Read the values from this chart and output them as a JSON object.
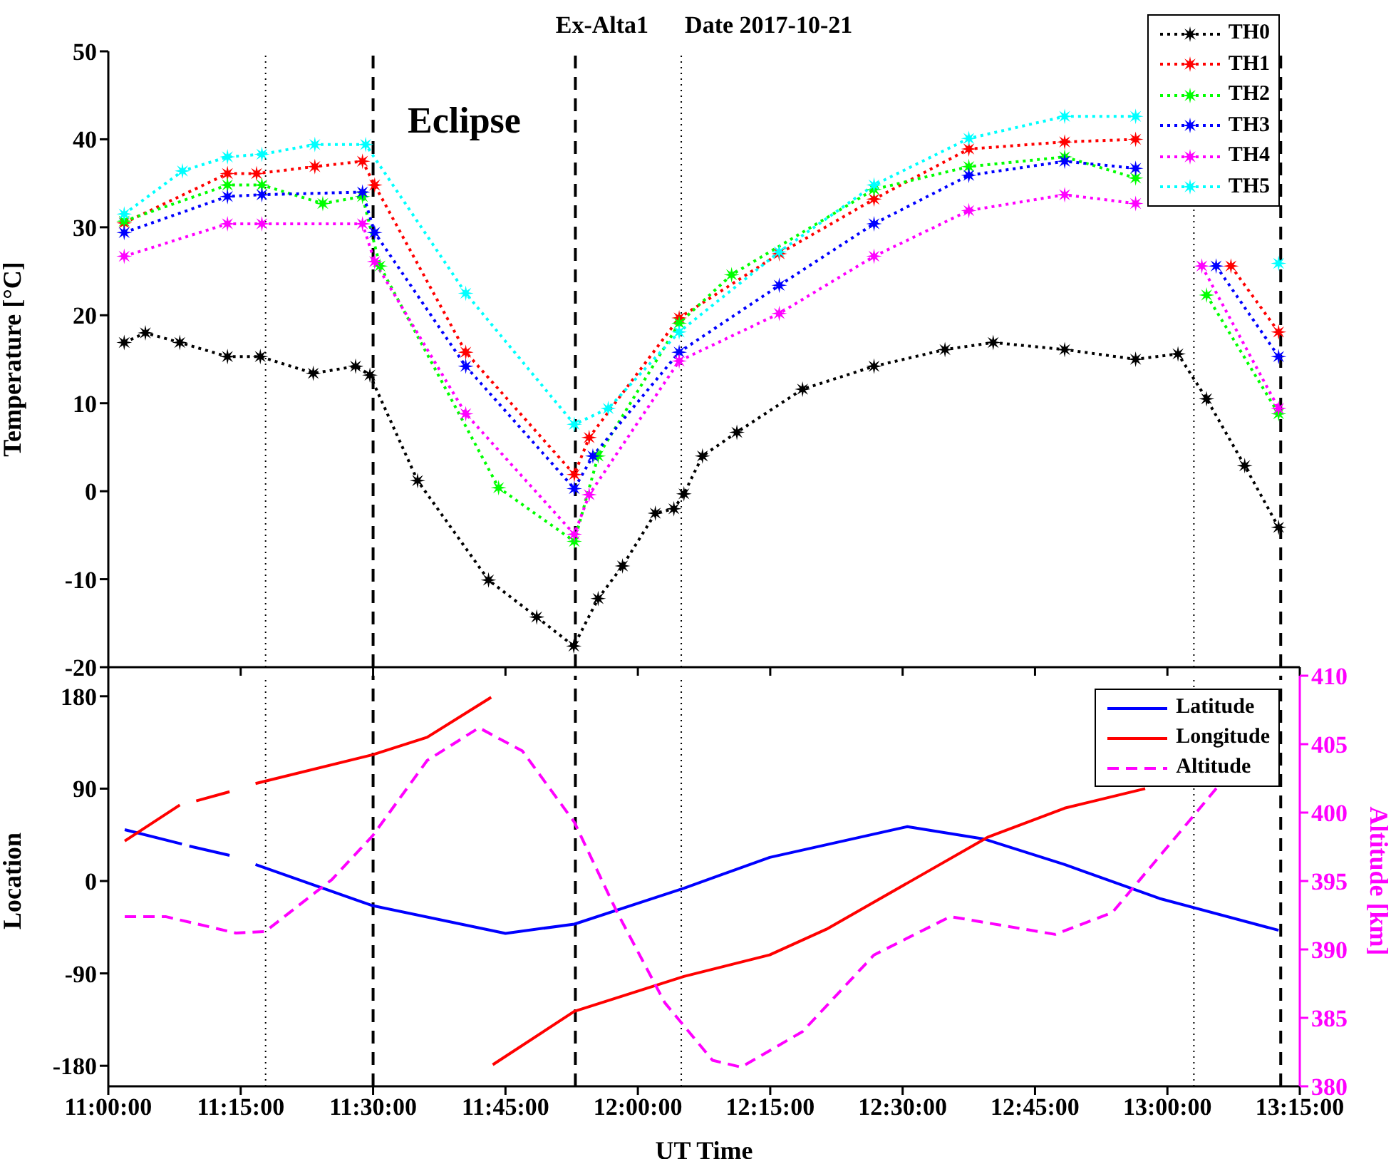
{
  "chart_data": [
    {
      "type": "line",
      "title": "Ex-Alta1      Date 2017-10-21",
      "ylabel": "Temperature [°C]",
      "xlim": [
        11,
        13.25
      ],
      "xticks": [
        11,
        11.25,
        11.5,
        11.75,
        12,
        12.25,
        12.5,
        12.75,
        13,
        13.25
      ],
      "ylim": [
        -20,
        50
      ],
      "yticks": [
        -20,
        -10,
        0,
        10,
        20,
        30,
        40,
        50
      ],
      "tick_labels": "y",
      "legend": "top right",
      "marker": "star",
      "line_style": "dotted",
      "annotations": [
        "Eclipse"
      ],
      "ref_lines": [
        {
          "axis": "x",
          "value": 11.297,
          "line_style": "dotted",
          "color": "#000000"
        },
        {
          "axis": "x",
          "value": 11.5,
          "line_style": "dashed",
          "color": "#000000"
        },
        {
          "axis": "x",
          "value": 11.882,
          "line_style": "dashed",
          "color": "#000000"
        },
        {
          "axis": "x",
          "value": 12.082,
          "line_style": "dotted",
          "color": "#000000"
        },
        {
          "axis": "x",
          "value": 13.05,
          "line_style": "dotted",
          "color": "#000000"
        },
        {
          "axis": "x",
          "value": 13.214,
          "line_style": "dashed",
          "color": "#000000"
        }
      ],
      "series": [
        {
          "name": "TH0",
          "color": "#000000",
          "x": [
            11.03,
            11.07,
            11.135,
            11.225,
            11.287,
            11.387,
            11.467,
            11.494,
            11.584,
            11.718,
            11.809,
            11.879,
            11.925,
            11.971,
            12.033,
            12.068,
            12.087,
            12.122,
            12.187,
            12.311,
            12.446,
            12.58,
            12.671,
            12.806,
            12.94,
            13.02,
            13.074,
            13.146,
            13.21
          ],
          "values": [
            16.9,
            18.0,
            16.9,
            15.3,
            15.3,
            13.4,
            14.2,
            13.2,
            1.2,
            -10.1,
            -14.3,
            -17.6,
            -12.2,
            -8.5,
            -2.5,
            -2.0,
            -0.3,
            4.0,
            6.7,
            11.6,
            14.2,
            16.1,
            16.9,
            16.1,
            15.0,
            15.6,
            10.5,
            2.9,
            -4.1
          ]
        },
        {
          "name": "TH1",
          "color": "#ff0000",
          "x": [
            11.03,
            11.225,
            11.28,
            11.39,
            11.48,
            11.503,
            11.675,
            11.88,
            11.908,
            12.078,
            12.267,
            12.446,
            12.625,
            12.806,
            12.94,
            13.0,
            13.12,
            13.21
          ],
          "values": [
            30.5,
            36.1,
            36.1,
            36.9,
            37.5,
            34.8,
            15.8,
            1.9,
            6.1,
            19.7,
            27.0,
            33.2,
            38.9,
            39.7,
            40.0,
            null,
            25.6,
            18.1
          ]
        },
        {
          "name": "TH2",
          "color": "#00ff00",
          "x": [
            11.03,
            11.225,
            11.29,
            11.405,
            11.48,
            11.513,
            11.737,
            11.88,
            11.925,
            12.078,
            12.177,
            12.446,
            12.625,
            12.806,
            12.94,
            13.0,
            13.074,
            13.21
          ],
          "values": [
            30.7,
            34.8,
            34.8,
            32.7,
            33.5,
            25.6,
            0.4,
            -5.7,
            4.0,
            19.1,
            24.6,
            34.3,
            36.9,
            38.0,
            35.6,
            null,
            22.3,
            8.8
          ]
        },
        {
          "name": "TH3",
          "color": "#0000ff",
          "x": [
            11.03,
            11.225,
            11.29,
            11.48,
            11.503,
            11.675,
            11.88,
            11.915,
            12.078,
            12.267,
            12.446,
            12.625,
            12.806,
            12.94,
            13.0,
            13.092,
            13.21
          ],
          "values": [
            29.4,
            33.5,
            33.7,
            34.0,
            29.4,
            14.2,
            0.3,
            4.0,
            15.8,
            23.4,
            30.4,
            35.9,
            37.5,
            36.7,
            null,
            25.6,
            15.3
          ]
        },
        {
          "name": "TH4",
          "color": "#ff00ff",
          "x": [
            11.03,
            11.225,
            11.29,
            11.48,
            11.503,
            11.675,
            11.88,
            11.908,
            12.078,
            12.267,
            12.446,
            12.625,
            12.806,
            12.94,
            13.0,
            13.065,
            13.21
          ],
          "values": [
            26.7,
            30.4,
            30.4,
            30.4,
            26.1,
            8.8,
            -4.9,
            -0.4,
            14.8,
            20.2,
            26.7,
            31.9,
            33.7,
            32.7,
            null,
            25.6,
            9.4
          ]
        },
        {
          "name": "TH5",
          "color": "#00ffff",
          "x": [
            11.03,
            11.14,
            11.225,
            11.29,
            11.39,
            11.486,
            11.675,
            11.88,
            11.944,
            12.078,
            12.267,
            12.446,
            12.625,
            12.806,
            12.94,
            13.0,
            13.21
          ],
          "values": [
            31.5,
            36.4,
            38.0,
            38.3,
            39.4,
            39.4,
            22.5,
            7.6,
            9.4,
            18.1,
            27.2,
            34.8,
            40.1,
            42.6,
            42.6,
            null,
            25.9
          ]
        }
      ]
    },
    {
      "type": "line",
      "xlabel": "UT Time",
      "ylabel": "Location",
      "y2label": "Altitude [km]",
      "xlim": [
        11,
        13.25
      ],
      "xticks": [
        {
          "value": 11,
          "label": "11:00:00"
        },
        {
          "value": 11.25,
          "label": "11:15:00"
        },
        {
          "value": 11.5,
          "label": "11:30:00"
        },
        {
          "value": 11.75,
          "label": "11:45:00"
        },
        {
          "value": 12,
          "label": "12:00:00"
        },
        {
          "value": 12.25,
          "label": "12:15:00"
        },
        {
          "value": 12.5,
          "label": "12:30:00"
        },
        {
          "value": 12.75,
          "label": "12:45:00"
        },
        {
          "value": 13,
          "label": "13:00:00"
        },
        {
          "value": 13.25,
          "label": "13:15:00"
        }
      ],
      "ylim": [
        -200,
        200
      ],
      "yticks": [
        -180,
        -90,
        0,
        90,
        180
      ],
      "y2lim": [
        380,
        410
      ],
      "y2ticks": [
        380,
        385,
        390,
        395,
        400,
        405,
        410
      ],
      "legend": "top right",
      "ref_lines": [
        {
          "axis": "x",
          "value": 11.297,
          "line_style": "dotted",
          "color": "#000000"
        },
        {
          "axis": "x",
          "value": 11.5,
          "line_style": "dashed",
          "color": "#000000"
        },
        {
          "axis": "x",
          "value": 11.882,
          "line_style": "dashed",
          "color": "#000000"
        },
        {
          "axis": "x",
          "value": 12.082,
          "line_style": "dotted",
          "color": "#000000"
        },
        {
          "axis": "x",
          "value": 13.05,
          "line_style": "dotted",
          "color": "#000000"
        },
        {
          "axis": "x",
          "value": 13.214,
          "line_style": "dashed",
          "color": "#000000"
        }
      ],
      "series": [
        {
          "name": "Latitude",
          "color": "#0000ff",
          "line_style": "solid",
          "x": [
            11.031,
            11.139,
            11.145,
            11.153,
            11.229,
            11.25,
            11.278,
            11.499,
            11.75,
            11.88,
            12.087,
            12.249,
            12.509,
            12.653,
            12.806,
            12.985,
            13.21
          ],
          "values": [
            50,
            36,
            null,
            34,
            25,
            null,
            16,
            -24,
            -51,
            -42,
            -7,
            23,
            53,
            41,
            16,
            -17,
            -48
          ]
        },
        {
          "name": "Longitude",
          "color": "#ff0000",
          "line_style": "solid",
          "x": [
            11.031,
            11.135,
            11.145,
            11.166,
            11.229,
            11.25,
            11.278,
            11.499,
            11.602,
            11.723,
            11.724,
            11.726,
            11.88,
            12.087,
            12.249,
            12.356,
            12.509,
            12.662,
            12.806,
            12.958
          ],
          "values": [
            39,
            74,
            null,
            78,
            87,
            null,
            95,
            123,
            140,
            179,
            null,
            -179,
            -127,
            -93,
            -72,
            -47,
            -2,
            43,
            71,
            90
          ]
        },
        {
          "name": "Altitude",
          "color": "#ff00ff",
          "line_style": "dashed",
          "axis": "y2",
          "x": [
            11.031,
            11.108,
            11.241,
            11.296,
            11.422,
            11.499,
            11.602,
            11.7,
            11.782,
            11.88,
            11.961,
            12.051,
            12.141,
            12.195,
            12.311,
            12.446,
            12.59,
            12.788,
            12.896,
            13.048,
            13.093
          ],
          "values": [
            392.4,
            392.4,
            391.2,
            391.3,
            395.1,
            398.3,
            403.8,
            406.2,
            404.5,
            399.3,
            392.7,
            386.1,
            381.9,
            381.4,
            384.0,
            389.6,
            392.4,
            391.1,
            392.7,
            399.7,
            401.8
          ]
        }
      ]
    }
  ]
}
